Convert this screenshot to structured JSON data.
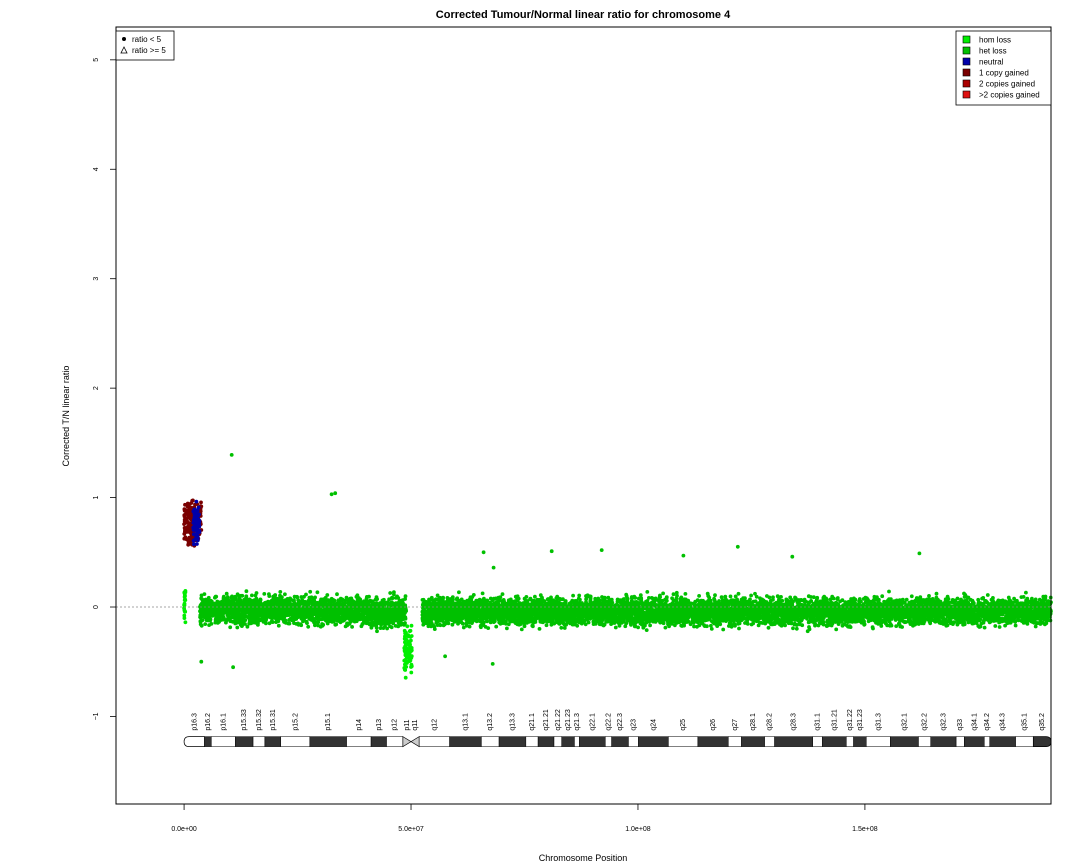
{
  "chart_data": {
    "type": "scatter",
    "title": "Corrected Tumour/Normal linear ratio for chromosome  4",
    "xlabel": "Chromosome Position",
    "ylabel": "Corrected T/N linear ratio",
    "xlim": [
      -15000000,
      191000000
    ],
    "ylim": [
      -1.8,
      5.3
    ],
    "x_ticks": [
      {
        "value": 0,
        "label": "0.0e+00"
      },
      {
        "value": 50000000,
        "label": "5.0e+07"
      },
      {
        "value": 100000000,
        "label": "1.0e+08"
      },
      {
        "value": 150000000,
        "label": "1.5e+08"
      }
    ],
    "y_ticks": [
      {
        "value": -1,
        "label": "−1"
      },
      {
        "value": 0,
        "label": "0"
      },
      {
        "value": 1,
        "label": "1"
      },
      {
        "value": 2,
        "label": "2"
      },
      {
        "value": 3,
        "label": "3"
      },
      {
        "value": 4,
        "label": "4"
      },
      {
        "value": 5,
        "label": "5"
      }
    ],
    "reference_line": 0,
    "legend_shape": {
      "placement": "top-left",
      "items": [
        {
          "label": "ratio < 5",
          "symbol": "dot"
        },
        {
          "label": "ratio >= 5",
          "symbol": "triangle"
        }
      ]
    },
    "legend_status": {
      "placement": "top-right",
      "items": [
        {
          "label": "hom loss",
          "color": "#00ee00"
        },
        {
          "label": "het loss",
          "color": "#00c000"
        },
        {
          "label": "neutral",
          "color": "#0000aa"
        },
        {
          "label": "1 copy gained",
          "color": "#7a0000"
        },
        {
          "label": "2 copies gained",
          "color": "#aa0000"
        },
        {
          "label": ">2 copies gained",
          "color": "#dd1111"
        }
      ]
    },
    "series": [
      {
        "name": "het loss",
        "color": "#00c000",
        "segments": [
          {
            "x_start": 3500000,
            "x_end": 39000000,
            "mean": -0.03,
            "sd": 0.11
          },
          {
            "x_start": 39000000,
            "x_end": 49000000,
            "mean": -0.05,
            "sd": 0.12
          },
          {
            "x_start": 52500000,
            "x_end": 191000000,
            "mean": -0.04,
            "sd": 0.11
          }
        ],
        "outliers": [
          {
            "x": 10500000,
            "y": 1.39
          },
          {
            "x": 32500000,
            "y": 1.03
          },
          {
            "x": 33300000,
            "y": 1.04
          },
          {
            "x": 3800000,
            "y": -0.5
          },
          {
            "x": 10800000,
            "y": -0.55
          },
          {
            "x": 57500000,
            "y": -0.45
          },
          {
            "x": 68000000,
            "y": -0.52
          },
          {
            "x": 68200000,
            "y": 0.36
          },
          {
            "x": 66000000,
            "y": 0.5
          },
          {
            "x": 81000000,
            "y": 0.51
          },
          {
            "x": 92000000,
            "y": 0.52
          },
          {
            "x": 110000000,
            "y": 0.47
          },
          {
            "x": 122000000,
            "y": 0.55
          },
          {
            "x": 134000000,
            "y": 0.46
          },
          {
            "x": 162000000,
            "y": 0.49
          }
        ]
      },
      {
        "name": "hom loss",
        "color": "#00ee00",
        "segments": [
          {
            "x_start": 0,
            "x_end": 300000,
            "mean": 0.05,
            "sd": 0.15
          },
          {
            "x_start": 48500000,
            "x_end": 50200000,
            "mean": -0.4,
            "sd": 0.2
          }
        ]
      },
      {
        "name": "1 copy gained",
        "color": "#7a0000",
        "segments": [
          {
            "x_start": 0,
            "x_end": 3800000,
            "mean": 0.78,
            "sd": 0.18
          }
        ]
      },
      {
        "name": "neutral",
        "color": "#0000aa",
        "segments": [
          {
            "x_start": 2000000,
            "x_end": 3400000,
            "mean": 0.75,
            "sd": 0.15
          }
        ]
      }
    ],
    "ideogram": {
      "bands": [
        {
          "name": "p16.3",
          "start": 0,
          "end": 4500000,
          "stain": "white"
        },
        {
          "name": "p16.2",
          "start": 4500000,
          "end": 6000000,
          "stain": "black"
        },
        {
          "name": "p16.1",
          "start": 6000000,
          "end": 11300000,
          "stain": "white"
        },
        {
          "name": "p15.33",
          "start": 11300000,
          "end": 15200000,
          "stain": "black"
        },
        {
          "name": "p15.32",
          "start": 15200000,
          "end": 17800000,
          "stain": "white"
        },
        {
          "name": "p15.31",
          "start": 17800000,
          "end": 21300000,
          "stain": "black"
        },
        {
          "name": "p15.2",
          "start": 21300000,
          "end": 27700000,
          "stain": "white"
        },
        {
          "name": "p15.1",
          "start": 27700000,
          "end": 35800000,
          "stain": "black"
        },
        {
          "name": "p14",
          "start": 35800000,
          "end": 41200000,
          "stain": "white"
        },
        {
          "name": "p13",
          "start": 41200000,
          "end": 44600000,
          "stain": "black"
        },
        {
          "name": "p12",
          "start": 44600000,
          "end": 48200000,
          "stain": "white"
        },
        {
          "name": "p11",
          "start": 48200000,
          "end": 50000000,
          "stain": "centro"
        },
        {
          "name": "q11",
          "start": 50000000,
          "end": 51800000,
          "stain": "centro"
        },
        {
          "name": "q12",
          "start": 51800000,
          "end": 58500000,
          "stain": "white"
        },
        {
          "name": "q13.1",
          "start": 58500000,
          "end": 65500000,
          "stain": "black"
        },
        {
          "name": "q13.2",
          "start": 65500000,
          "end": 69400000,
          "stain": "white"
        },
        {
          "name": "q13.3",
          "start": 69400000,
          "end": 75300000,
          "stain": "black"
        },
        {
          "name": "q21.1",
          "start": 75300000,
          "end": 78000000,
          "stain": "white"
        },
        {
          "name": "q21.21",
          "start": 78000000,
          "end": 81500000,
          "stain": "black"
        },
        {
          "name": "q21.22",
          "start": 81500000,
          "end": 83200000,
          "stain": "white"
        },
        {
          "name": "q21.23",
          "start": 83200000,
          "end": 86000000,
          "stain": "black"
        },
        {
          "name": "q21.3",
          "start": 86000000,
          "end": 87100000,
          "stain": "white"
        },
        {
          "name": "q22.1",
          "start": 87100000,
          "end": 92800000,
          "stain": "black"
        },
        {
          "name": "q22.2",
          "start": 92800000,
          "end": 94200000,
          "stain": "white"
        },
        {
          "name": "q22.3",
          "start": 94200000,
          "end": 97900000,
          "stain": "black"
        },
        {
          "name": "q23",
          "start": 97900000,
          "end": 100100000,
          "stain": "white"
        },
        {
          "name": "q24",
          "start": 100100000,
          "end": 106700000,
          "stain": "black"
        },
        {
          "name": "q25",
          "start": 106700000,
          "end": 113200000,
          "stain": "white"
        },
        {
          "name": "q26",
          "start": 113200000,
          "end": 119900000,
          "stain": "black"
        },
        {
          "name": "q27",
          "start": 119900000,
          "end": 122800000,
          "stain": "white"
        },
        {
          "name": "q28.1",
          "start": 122800000,
          "end": 127900000,
          "stain": "black"
        },
        {
          "name": "q28.2",
          "start": 127900000,
          "end": 130100000,
          "stain": "white"
        },
        {
          "name": "q28.3",
          "start": 130100000,
          "end": 138500000,
          "stain": "black"
        },
        {
          "name": "q31.1",
          "start": 138500000,
          "end": 140600000,
          "stain": "white"
        },
        {
          "name": "q31.21",
          "start": 140600000,
          "end": 145900000,
          "stain": "black"
        },
        {
          "name": "q31.22",
          "start": 145900000,
          "end": 147500000,
          "stain": "white"
        },
        {
          "name": "q31.23",
          "start": 147500000,
          "end": 150300000,
          "stain": "black"
        },
        {
          "name": "q31.3",
          "start": 150300000,
          "end": 155600000,
          "stain": "white"
        },
        {
          "name": "q32.1",
          "start": 155600000,
          "end": 161800000,
          "stain": "black"
        },
        {
          "name": "q32.2",
          "start": 161800000,
          "end": 164500000,
          "stain": "white"
        },
        {
          "name": "q32.3",
          "start": 164500000,
          "end": 170100000,
          "stain": "black"
        },
        {
          "name": "q33",
          "start": 170100000,
          "end": 171900000,
          "stain": "white"
        },
        {
          "name": "q34.1",
          "start": 171900000,
          "end": 176300000,
          "stain": "black"
        },
        {
          "name": "q34.2",
          "start": 176300000,
          "end": 177500000,
          "stain": "white"
        },
        {
          "name": "q34.3",
          "start": 177500000,
          "end": 183200000,
          "stain": "black"
        },
        {
          "name": "q35.1",
          "start": 183200000,
          "end": 187100000,
          "stain": "white"
        },
        {
          "name": "q35.2",
          "start": 187100000,
          "end": 191000000,
          "stain": "black"
        }
      ]
    }
  }
}
